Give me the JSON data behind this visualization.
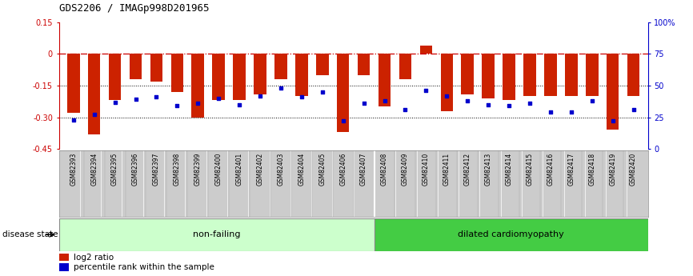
{
  "title": "GDS2206 / IMAGp998D201965",
  "samples": [
    "GSM82393",
    "GSM82394",
    "GSM82395",
    "GSM82396",
    "GSM82397",
    "GSM82398",
    "GSM82399",
    "GSM82400",
    "GSM82401",
    "GSM82402",
    "GSM82403",
    "GSM82404",
    "GSM82405",
    "GSM82406",
    "GSM82407",
    "GSM82408",
    "GSM82409",
    "GSM82410",
    "GSM82411",
    "GSM82412",
    "GSM82413",
    "GSM82414",
    "GSM82415",
    "GSM82416",
    "GSM82417",
    "GSM82418",
    "GSM82419",
    "GSM82420"
  ],
  "log2_ratio": [
    -0.28,
    -0.38,
    -0.22,
    -0.12,
    -0.13,
    -0.18,
    -0.3,
    -0.22,
    -0.22,
    -0.19,
    -0.12,
    -0.2,
    -0.1,
    -0.37,
    -0.1,
    -0.25,
    -0.12,
    0.04,
    -0.27,
    -0.19,
    -0.21,
    -0.22,
    -0.2,
    -0.2,
    -0.2,
    -0.2,
    -0.36,
    -0.2
  ],
  "percentile_rank": [
    23,
    27,
    37,
    39,
    41,
    34,
    36,
    40,
    35,
    42,
    48,
    41,
    45,
    22,
    36,
    38,
    31,
    46,
    42,
    38,
    35,
    34,
    36,
    29,
    29,
    38,
    22,
    31
  ],
  "non_failing_count": 15,
  "ylim_left": [
    -0.45,
    0.15
  ],
  "ylim_right": [
    0,
    100
  ],
  "bar_color": "#cc2200",
  "dot_color": "#0000cc",
  "nonfailing_color": "#ccffcc",
  "dcm_color": "#44cc44",
  "label_log2": "log2 ratio",
  "label_percentile": "percentile rank within the sample",
  "disease_state_label": "disease state",
  "nonfailing_label": "non-failing",
  "dcm_label": "dilated cardiomyopathy",
  "hline_zero_color": "#cc0000",
  "hline_dotted_color": "#000000",
  "left_yticks": [
    0.15,
    0,
    -0.15,
    -0.3,
    -0.45
  ],
  "left_ytick_labels": [
    "0.15",
    "0",
    "-0.15",
    "-0.30",
    "-0.45"
  ],
  "right_yticks": [
    0,
    25,
    50,
    75,
    100
  ],
  "right_ytick_labels": [
    "0",
    "25",
    "50",
    "75",
    "100%"
  ]
}
